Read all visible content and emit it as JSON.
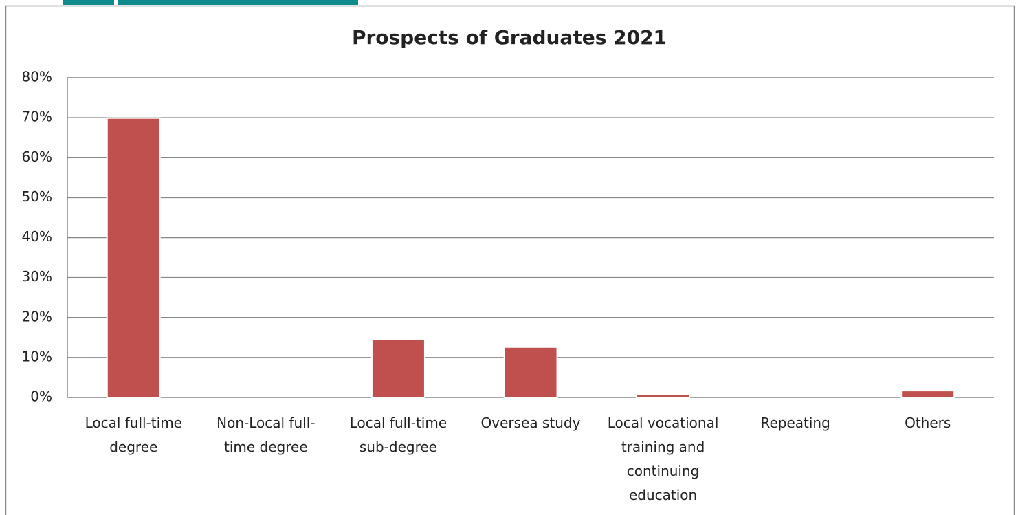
{
  "chart_data": {
    "type": "bar",
    "title": "Prospects of Graduates 2021",
    "categories": [
      "Local full-time degree",
      "Non-Local full-time degree",
      "Local full-time sub-degree",
      "Oversea study",
      "Local vocational training and continuing education",
      "Repeating",
      "Others"
    ],
    "values": [
      69.9,
      0,
      14.5,
      12.6,
      0.7,
      0,
      1.7
    ],
    "color": "#c0504d",
    "ylim": [
      0,
      80
    ],
    "yticks": [
      {
        "value": 0,
        "label": "0%"
      },
      {
        "value": 10,
        "label": "10%"
      },
      {
        "value": 20,
        "label": "20%"
      },
      {
        "value": 30,
        "label": "30%"
      },
      {
        "value": 40,
        "label": "40%"
      },
      {
        "value": 50,
        "label": "50%"
      },
      {
        "value": 60,
        "label": "60%"
      },
      {
        "value": 70,
        "label": "70%"
      },
      {
        "value": 80,
        "label": "80%"
      }
    ],
    "grid": true
  }
}
